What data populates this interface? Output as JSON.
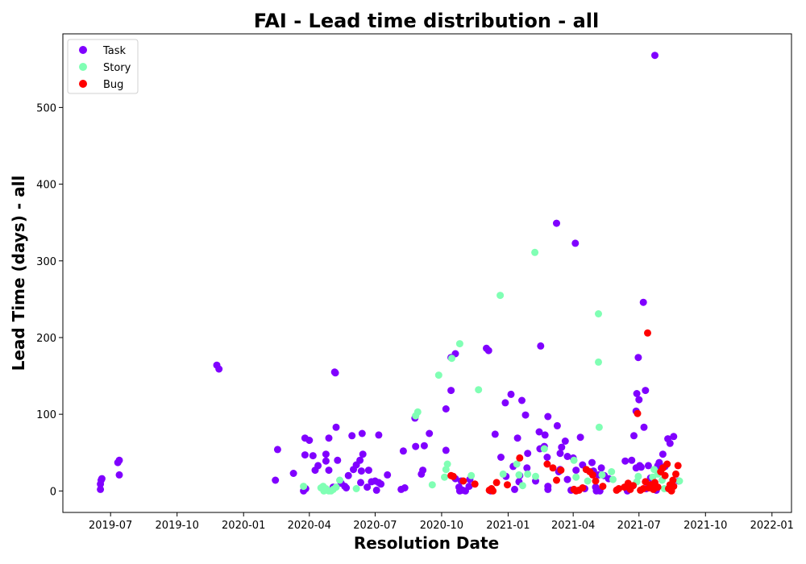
{
  "chart_data": {
    "type": "scatter",
    "title": "FAI - Lead time distribution - all",
    "xlabel": "Resolution Date",
    "ylabel": "Lead Time (days) - all",
    "x_axis_type": "date",
    "xlim": [
      "2019-04-26",
      "2022-01-28"
    ],
    "ylim": [
      -28,
      596
    ],
    "x_ticks": [
      "2019-07-01",
      "2019-10-01",
      "2020-01-01",
      "2020-04-01",
      "2020-07-01",
      "2020-10-01",
      "2021-01-01",
      "2021-04-01",
      "2021-07-01",
      "2021-10-01",
      "2022-01-01"
    ],
    "x_tick_labels": [
      "2019-07",
      "2019-10",
      "2020-01",
      "2020-04",
      "2020-07",
      "2020-10",
      "2021-01",
      "2021-04",
      "2021-07",
      "2021-10",
      "2022-01"
    ],
    "y_ticks": [
      0,
      100,
      200,
      300,
      400,
      500
    ],
    "y_tick_labels": [
      "0",
      "100",
      "200",
      "300",
      "400",
      "500"
    ],
    "grid": false,
    "legend_position": "top-left",
    "series": [
      {
        "name": "Task",
        "color": "#8000ff",
        "points": [
          [
            "2019-06-17",
            2
          ],
          [
            "2019-06-17",
            9
          ],
          [
            "2019-06-18",
            14
          ],
          [
            "2019-06-19",
            16
          ],
          [
            "2019-07-11",
            37
          ],
          [
            "2019-07-13",
            40
          ],
          [
            "2019-07-13",
            21
          ],
          [
            "2019-11-25",
            164
          ],
          [
            "2019-11-28",
            159
          ],
          [
            "2020-02-14",
            14
          ],
          [
            "2020-02-17",
            54
          ],
          [
            "2020-03-10",
            23
          ],
          [
            "2020-03-24",
            0
          ],
          [
            "2020-03-26",
            47
          ],
          [
            "2020-03-26",
            69
          ],
          [
            "2020-03-27",
            3
          ],
          [
            "2020-04-01",
            66
          ],
          [
            "2020-04-06",
            46
          ],
          [
            "2020-04-09",
            27
          ],
          [
            "2020-04-13",
            33
          ],
          [
            "2020-04-24",
            48
          ],
          [
            "2020-04-24",
            39
          ],
          [
            "2020-04-28",
            69
          ],
          [
            "2020-04-28",
            27
          ],
          [
            "2020-05-04",
            5
          ],
          [
            "2020-05-06",
            155
          ],
          [
            "2020-05-07",
            154
          ],
          [
            "2020-05-08",
            83
          ],
          [
            "2020-05-10",
            40
          ],
          [
            "2020-05-15",
            10
          ],
          [
            "2020-05-20",
            6
          ],
          [
            "2020-05-22",
            4
          ],
          [
            "2020-05-25",
            20
          ],
          [
            "2020-05-30",
            72
          ],
          [
            "2020-06-01",
            28
          ],
          [
            "2020-06-05",
            34
          ],
          [
            "2020-06-10",
            40
          ],
          [
            "2020-06-11",
            11
          ],
          [
            "2020-06-13",
            75
          ],
          [
            "2020-06-14",
            48
          ],
          [
            "2020-06-12",
            26
          ],
          [
            "2020-06-20",
            5
          ],
          [
            "2020-06-22",
            27
          ],
          [
            "2020-06-26",
            12
          ],
          [
            "2020-07-01",
            13
          ],
          [
            "2020-07-03",
            1
          ],
          [
            "2020-07-06",
            73
          ],
          [
            "2020-07-06",
            11
          ],
          [
            "2020-07-09",
            9
          ],
          [
            "2020-07-18",
            21
          ],
          [
            "2020-08-06",
            2
          ],
          [
            "2020-08-09",
            52
          ],
          [
            "2020-08-11",
            4
          ],
          [
            "2020-08-25",
            95
          ],
          [
            "2020-08-26",
            58
          ],
          [
            "2020-09-03",
            22
          ],
          [
            "2020-09-05",
            27
          ],
          [
            "2020-09-07",
            59
          ],
          [
            "2020-09-14",
            75
          ],
          [
            "2020-10-07",
            107
          ],
          [
            "2020-10-07",
            53
          ],
          [
            "2020-10-14",
            131
          ],
          [
            "2020-10-14",
            174
          ],
          [
            "2020-10-20",
            179
          ],
          [
            "2020-10-20",
            16
          ],
          [
            "2020-10-25",
            5
          ],
          [
            "2020-10-26",
            0
          ],
          [
            "2020-10-28",
            13
          ],
          [
            "2020-10-30",
            1
          ],
          [
            "2020-11-03",
            0
          ],
          [
            "2020-11-08",
            6
          ],
          [
            "2020-11-09",
            15
          ],
          [
            "2020-12-02",
            186
          ],
          [
            "2020-12-05",
            183
          ],
          [
            "2020-12-08",
            0
          ],
          [
            "2020-12-14",
            74
          ],
          [
            "2020-12-22",
            44
          ],
          [
            "2020-12-28",
            115
          ],
          [
            "2020-12-29",
            19
          ],
          [
            "2021-01-05",
            126
          ],
          [
            "2021-01-08",
            32
          ],
          [
            "2021-01-10",
            2
          ],
          [
            "2021-01-14",
            69
          ],
          [
            "2021-01-16",
            12
          ],
          [
            "2021-01-17",
            20
          ],
          [
            "2021-01-20",
            118
          ],
          [
            "2021-01-25",
            99
          ],
          [
            "2021-01-27",
            30
          ],
          [
            "2021-01-28",
            49
          ],
          [
            "2021-02-08",
            13
          ],
          [
            "2021-02-13",
            77
          ],
          [
            "2021-02-14",
            55
          ],
          [
            "2021-02-15",
            189
          ],
          [
            "2021-02-20",
            58
          ],
          [
            "2021-02-21",
            73
          ],
          [
            "2021-02-24",
            44
          ],
          [
            "2021-02-25",
            97
          ],
          [
            "2021-02-25",
            6
          ],
          [
            "2021-02-25",
            2
          ],
          [
            "2021-03-09",
            349
          ],
          [
            "2021-03-10",
            85
          ],
          [
            "2021-03-12",
            25
          ],
          [
            "2021-03-14",
            28
          ],
          [
            "2021-03-14",
            49
          ],
          [
            "2021-03-16",
            57
          ],
          [
            "2021-03-21",
            65
          ],
          [
            "2021-03-24",
            45
          ],
          [
            "2021-03-24",
            15
          ],
          [
            "2021-03-29",
            1
          ],
          [
            "2021-04-01",
            43
          ],
          [
            "2021-04-04",
            323
          ],
          [
            "2021-04-05",
            27
          ],
          [
            "2021-04-11",
            70
          ],
          [
            "2021-04-14",
            34
          ],
          [
            "2021-04-17",
            3
          ],
          [
            "2021-04-27",
            37
          ],
          [
            "2021-04-29",
            26
          ],
          [
            "2021-05-02",
            5
          ],
          [
            "2021-05-03",
            0
          ],
          [
            "2021-05-06",
            21
          ],
          [
            "2021-05-08",
            0
          ],
          [
            "2021-05-10",
            30
          ],
          [
            "2021-05-14",
            20
          ],
          [
            "2021-05-20",
            16
          ],
          [
            "2021-06-12",
            39
          ],
          [
            "2021-06-15",
            0
          ],
          [
            "2021-06-21",
            40
          ],
          [
            "2021-06-24",
            72
          ],
          [
            "2021-06-27",
            30
          ],
          [
            "2021-06-27",
            104
          ],
          [
            "2021-06-28",
            127
          ],
          [
            "2021-06-30",
            174
          ],
          [
            "2021-07-01",
            119
          ],
          [
            "2021-07-02",
            33
          ],
          [
            "2021-07-04",
            31
          ],
          [
            "2021-07-07",
            246
          ],
          [
            "2021-07-08",
            83
          ],
          [
            "2021-07-10",
            131
          ],
          [
            "2021-07-11",
            3
          ],
          [
            "2021-07-14",
            33
          ],
          [
            "2021-07-17",
            17
          ],
          [
            "2021-07-23",
            568
          ],
          [
            "2021-07-25",
            1
          ],
          [
            "2021-07-27",
            33
          ],
          [
            "2021-07-29",
            37
          ],
          [
            "2021-08-03",
            48
          ],
          [
            "2021-08-06",
            32
          ],
          [
            "2021-08-10",
            68
          ],
          [
            "2021-08-13",
            62
          ],
          [
            "2021-08-18",
            71
          ],
          [
            "2021-08-25",
            13
          ]
        ]
      },
      {
        "name": "Story",
        "color": "#80ffb4",
        "points": [
          [
            "2020-03-24",
            6
          ],
          [
            "2020-04-17",
            4
          ],
          [
            "2020-04-20",
            6
          ],
          [
            "2020-04-21",
            0
          ],
          [
            "2020-04-24",
            3
          ],
          [
            "2020-04-26",
            1
          ],
          [
            "2020-04-28",
            0
          ],
          [
            "2020-05-01",
            0
          ],
          [
            "2020-05-04",
            2
          ],
          [
            "2020-05-08",
            5
          ],
          [
            "2020-05-13",
            14
          ],
          [
            "2020-06-05",
            3
          ],
          [
            "2020-08-26",
            98
          ],
          [
            "2020-08-29",
            103
          ],
          [
            "2020-09-18",
            8
          ],
          [
            "2020-09-27",
            151
          ],
          [
            "2020-10-05",
            18
          ],
          [
            "2020-10-07",
            28
          ],
          [
            "2020-10-09",
            35
          ],
          [
            "2020-10-15",
            173
          ],
          [
            "2020-10-26",
            192
          ],
          [
            "2020-11-11",
            20
          ],
          [
            "2020-11-21",
            132
          ],
          [
            "2020-12-21",
            255
          ],
          [
            "2020-12-25",
            22
          ],
          [
            "2021-01-13",
            35
          ],
          [
            "2021-01-16",
            21
          ],
          [
            "2021-01-21",
            7
          ],
          [
            "2021-01-28",
            22
          ],
          [
            "2021-02-07",
            311
          ],
          [
            "2021-02-08",
            19
          ],
          [
            "2021-02-20",
            55
          ],
          [
            "2021-04-02",
            40
          ],
          [
            "2021-04-05",
            18
          ],
          [
            "2021-04-21",
            13
          ],
          [
            "2021-05-06",
            231
          ],
          [
            "2021-05-06",
            168
          ],
          [
            "2021-05-07",
            83
          ],
          [
            "2021-05-11",
            21
          ],
          [
            "2021-05-24",
            25
          ],
          [
            "2021-05-26",
            15
          ],
          [
            "2021-06-28",
            12
          ],
          [
            "2021-06-30",
            19
          ],
          [
            "2021-07-20",
            18
          ],
          [
            "2021-07-22",
            28
          ],
          [
            "2021-07-27",
            22
          ],
          [
            "2021-08-02",
            14
          ],
          [
            "2021-08-05",
            3
          ],
          [
            "2021-08-26",
            13
          ]
        ]
      },
      {
        "name": "Bug",
        "color": "#ff0000",
        "points": [
          [
            "2020-10-14",
            20
          ],
          [
            "2020-10-17",
            19
          ],
          [
            "2020-10-31",
            13
          ],
          [
            "2020-11-16",
            9
          ],
          [
            "2020-12-06",
            1
          ],
          [
            "2020-12-09",
            3
          ],
          [
            "2020-12-11",
            0
          ],
          [
            "2020-12-16",
            11
          ],
          [
            "2020-12-31",
            8
          ],
          [
            "2021-01-17",
            43
          ],
          [
            "2021-02-24",
            35
          ],
          [
            "2021-03-04",
            30
          ],
          [
            "2021-03-09",
            14
          ],
          [
            "2021-03-15",
            27
          ],
          [
            "2021-04-02",
            2
          ],
          [
            "2021-04-05",
            0
          ],
          [
            "2021-04-09",
            1
          ],
          [
            "2021-04-14",
            4
          ],
          [
            "2021-04-19",
            28
          ],
          [
            "2021-04-24",
            25
          ],
          [
            "2021-04-28",
            21
          ],
          [
            "2021-05-02",
            13
          ],
          [
            "2021-05-12",
            6
          ],
          [
            "2021-05-31",
            1
          ],
          [
            "2021-06-03",
            3
          ],
          [
            "2021-06-11",
            5
          ],
          [
            "2021-06-16",
            10
          ],
          [
            "2021-06-19",
            2
          ],
          [
            "2021-06-23",
            7
          ],
          [
            "2021-06-29",
            101
          ],
          [
            "2021-07-03",
            1
          ],
          [
            "2021-07-07",
            3
          ],
          [
            "2021-07-10",
            12
          ],
          [
            "2021-07-13",
            206
          ],
          [
            "2021-07-15",
            4
          ],
          [
            "2021-07-17",
            8
          ],
          [
            "2021-07-21",
            2
          ],
          [
            "2021-07-23",
            11
          ],
          [
            "2021-07-27",
            5
          ],
          [
            "2021-07-31",
            25
          ],
          [
            "2021-08-03",
            30
          ],
          [
            "2021-08-06",
            20
          ],
          [
            "2021-08-09",
            35
          ],
          [
            "2021-08-11",
            3
          ],
          [
            "2021-08-13",
            8
          ],
          [
            "2021-08-15",
            0
          ],
          [
            "2021-08-17",
            14
          ],
          [
            "2021-08-18",
            6
          ],
          [
            "2021-08-21",
            22
          ],
          [
            "2021-08-24",
            33
          ]
        ]
      }
    ]
  }
}
